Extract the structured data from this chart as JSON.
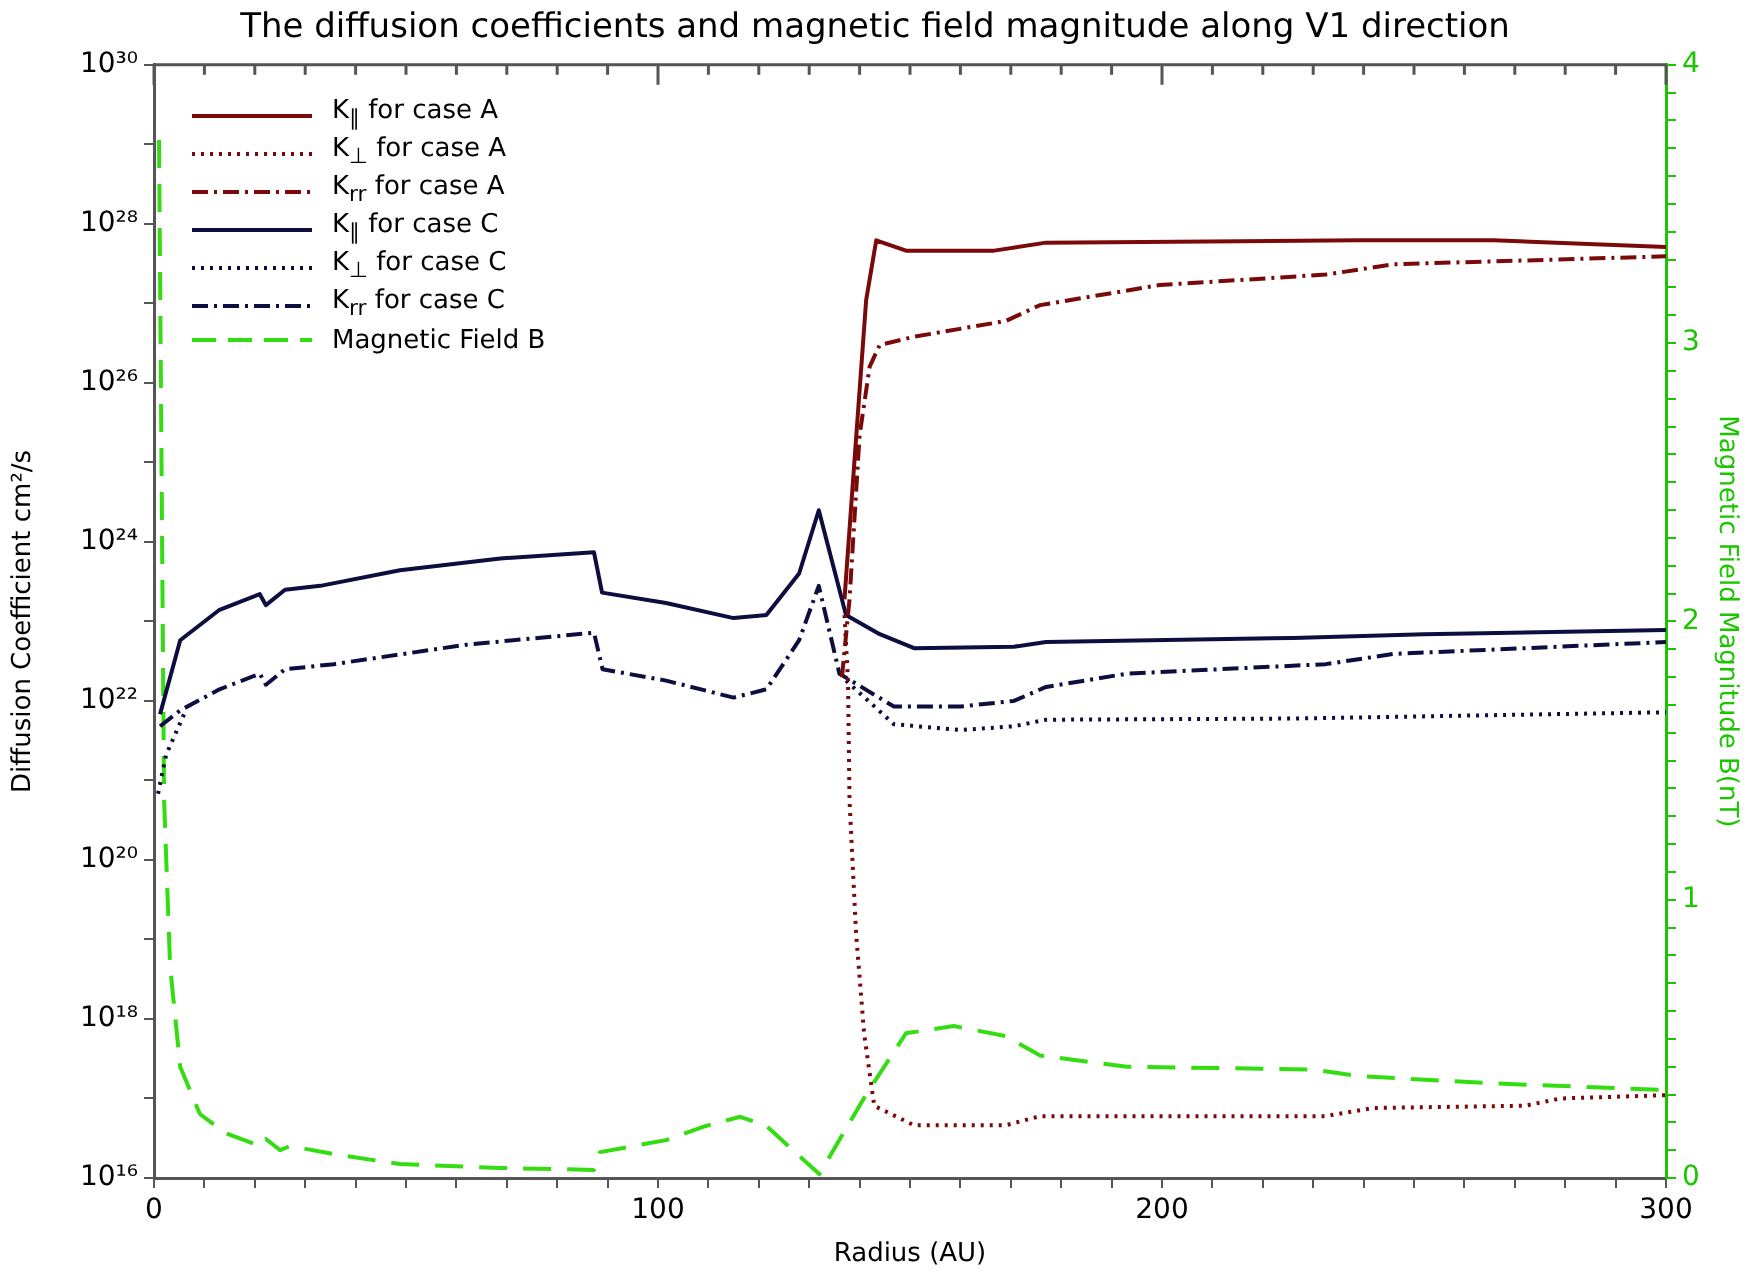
{
  "chart_data": {
    "type": "line",
    "title": "The diffusion coefficients and magnetic field magnitude along V1 direction",
    "xlabel": "Radius (AU)",
    "ylabel": "Diffusion Coefficient cm²/s",
    "y2label": "Magnetic Field Magnitude B(nT)",
    "log": "y",
    "legend": "top left",
    "marker": "none",
    "grid": false,
    "xlim": [
      0,
      300
    ],
    "xticks": [
      0,
      {
        "value": 10,
        "label": null
      },
      {
        "value": 20,
        "label": null
      },
      {
        "value": 30,
        "label": null
      },
      {
        "value": 40,
        "label": null
      },
      {
        "value": 50,
        "label": null
      },
      {
        "value": 60,
        "label": null
      },
      {
        "value": 70,
        "label": null
      },
      {
        "value": 80,
        "label": null
      },
      {
        "value": 90,
        "label": null
      },
      100,
      {
        "value": 110,
        "label": null
      },
      {
        "value": 120,
        "label": null
      },
      {
        "value": 130,
        "label": null
      },
      {
        "value": 140,
        "label": null
      },
      {
        "value": 150,
        "label": null
      },
      {
        "value": 160,
        "label": null
      },
      {
        "value": 170,
        "label": null
      },
      {
        "value": 180,
        "label": null
      },
      {
        "value": 190,
        "label": null
      },
      200,
      {
        "value": 210,
        "label": null
      },
      {
        "value": 220,
        "label": null
      },
      {
        "value": 230,
        "label": null
      },
      {
        "value": 240,
        "label": null
      },
      {
        "value": 250,
        "label": null
      },
      {
        "value": 260,
        "label": null
      },
      {
        "value": 270,
        "label": null
      },
      {
        "value": 280,
        "label": null
      },
      {
        "value": 290,
        "label": null
      },
      300
    ],
    "ylim": [
      1e+16,
      1e+30
    ],
    "yticks": [
      {
        "value": 1e+16,
        "label": "10¹⁶"
      },
      {
        "value": 1e+17,
        "label": null
      },
      {
        "value": 1e+18,
        "label": "10¹⁸"
      },
      {
        "value": 1e+19,
        "label": null
      },
      {
        "value": 1e+20,
        "label": "10²⁰"
      },
      {
        "value": 1e+21,
        "label": null
      },
      {
        "value": 1e+22,
        "label": "10²²"
      },
      {
        "value": 1e+23,
        "label": null
      },
      {
        "value": 1e+24,
        "label": "10²⁴"
      },
      {
        "value": 1e+25,
        "label": null
      },
      {
        "value": 1e+26,
        "label": "10²⁶"
      },
      {
        "value": 1e+27,
        "label": null
      },
      {
        "value": 1e+28,
        "label": "10²⁸"
      },
      {
        "value": 1e+29,
        "label": null
      },
      {
        "value": 1e+30,
        "label": "10³⁰"
      }
    ],
    "y2lim": [
      0,
      4
    ],
    "y2ticks": [
      0,
      {
        "value": 0.1,
        "label": null
      },
      {
        "value": 0.2,
        "label": null
      },
      {
        "value": 0.3,
        "label": null
      },
      {
        "value": 0.4,
        "label": null
      },
      {
        "value": 0.5,
        "label": null
      },
      {
        "value": 0.6,
        "label": null
      },
      {
        "value": 0.7,
        "label": null
      },
      {
        "value": 0.8,
        "label": null
      },
      {
        "value": 0.9,
        "label": null
      },
      1,
      {
        "value": 1.1,
        "label": null
      },
      {
        "value": 1.2,
        "label": null
      },
      {
        "value": 1.3,
        "label": null
      },
      {
        "value": 1.4,
        "label": null
      },
      {
        "value": 1.5,
        "label": null
      },
      {
        "value": 1.6,
        "label": null
      },
      {
        "value": 1.7,
        "label": null
      },
      {
        "value": 1.8,
        "label": null
      },
      {
        "value": 1.9,
        "label": null
      },
      2,
      {
        "value": 2.1,
        "label": null
      },
      {
        "value": 2.2,
        "label": null
      },
      {
        "value": 2.3,
        "label": null
      },
      {
        "value": 2.4,
        "label": null
      },
      {
        "value": 2.5,
        "label": null
      },
      {
        "value": 2.6,
        "label": null
      },
      {
        "value": 2.7,
        "label": null
      },
      {
        "value": 2.8,
        "label": null
      },
      {
        "value": 2.9,
        "label": null
      },
      3,
      {
        "value": 3.1,
        "label": null
      },
      {
        "value": 3.2,
        "label": null
      },
      {
        "value": 3.3,
        "label": null
      },
      {
        "value": 3.4,
        "label": null
      },
      {
        "value": 3.5,
        "label": null
      },
      {
        "value": 3.6,
        "label": null
      },
      {
        "value": 3.7,
        "label": null
      },
      {
        "value": 3.8,
        "label": null
      },
      {
        "value": 3.9,
        "label": null
      },
      4
    ],
    "series": [
      {
        "name": "K$_{∥}$ for case A",
        "color": "#7a0a0a",
        "line_style": "solid",
        "x": [
          137,
          138.9,
          141.3,
          143.3,
          149.2,
          166.7,
          177,
          239,
          265.8,
          300
        ],
        "values": [
          1.9e+23,
          8.9e+24,
          1.1e+27,
          6.2e+27,
          4.6e+27,
          4.6e+27,
          5.8e+27,
          6.2e+27,
          6.2e+27,
          5.1e+27
        ]
      },
      {
        "name": "K$_{⊥}$ for case A",
        "color": "#7a0a0a",
        "line_style": "dotted",
        "x": [
          137,
          137.7,
          138,
          139.3,
          140.9,
          142.9,
          150.8,
          169,
          175.8,
          232.5,
          242,
          272,
          279,
          300
        ],
        "values": [
          1.2e+23,
          1.8e+22,
          5.6e+20,
          1.2e+19,
          6.5e+17,
          8.1e+16,
          4.6e+16,
          4.6e+16,
          6e+16,
          6e+16,
          7.6e+16,
          8.1e+16,
          1e+17,
          1.1e+17
        ]
      },
      {
        "name": "K$_{rr}$ for case A",
        "color": "#7a0a0a",
        "line_style": "dashdot",
        "x": [
          136.5,
          138,
          140,
          142,
          144,
          150.8,
          169,
          175.8,
          199.6,
          232.5,
          246,
          300
        ],
        "values": [
          2e+22,
          1.9e+23,
          2.2e+25,
          1.6e+26,
          3e+26,
          3.8e+26,
          6e+26,
          9.5e+26,
          1.7e+27,
          2.3e+27,
          3.1e+27,
          3.9e+27
        ]
      },
      {
        "name": "K$_{∥}$ for case C",
        "color": "#0d0d40",
        "line_style": "solid",
        "x": [
          1.2,
          5.2,
          13,
          21,
          22.2,
          26,
          33,
          48.8,
          68.7,
          87.3,
          88.9,
          101.6,
          115,
          121.5,
          128,
          131.9,
          137.3,
          144,
          150.8,
          170.6,
          177,
          226,
          252,
          300
        ],
        "values": [
          6.8e+21,
          5.8e+22,
          1.4e+23,
          2.2e+23,
          1.6e+23,
          2.5e+23,
          2.8e+23,
          4.4e+23,
          6.2e+23,
          7.4e+23,
          2.3e+23,
          1.7e+23,
          1.1e+23,
          1.2e+23,
          4e+23,
          2.5e+24,
          1.2e+23,
          6.9e+22,
          4.6e+22,
          4.8e+22,
          5.5e+22,
          6.2e+22,
          6.9e+22,
          7.8e+22
        ]
      },
      {
        "name": "K$_{⊥}$ for case C",
        "color": "#0d0d40",
        "line_style": "dotted",
        "x": [
          0.8,
          2.4,
          6.3,
          10,
          137.3,
          146.8,
          160,
          170.6,
          177,
          226,
          300
        ],
        "values": [
          6.8e+20,
          2.1e+21,
          7.6e+21,
          null,
          1.8e+22,
          5.1e+21,
          4.3e+21,
          4.8e+21,
          5.8e+21,
          6e+21,
          7.2e+21
        ]
      },
      {
        "name": "K$_{rr}$ for case C",
        "color": "#0d0d40",
        "line_style": "dashdot",
        "x": [
          1.2,
          5.2,
          13,
          21,
          22.2,
          26,
          35.7,
          62,
          87.3,
          89,
          101.6,
          115,
          121.5,
          128,
          131.9,
          136,
          146.8,
          160,
          170.6,
          177,
          193,
          232.5,
          246,
          300
        ],
        "values": [
          4.8e+21,
          7.6e+21,
          1.4e+22,
          2.2e+22,
          1.6e+22,
          2.5e+22,
          2.9e+22,
          5.1e+22,
          7.2e+22,
          2.5e+22,
          1.8e+22,
          1.1e+22,
          1.4e+22,
          5.8e+22,
          2.8e+23,
          2.2e+22,
          8.5e+21,
          8.5e+21,
          1e+22,
          1.5e+22,
          2.2e+22,
          2.9e+22,
          3.9e+22,
          5.5e+22
        ]
      },
      {
        "name": "Magnetic Field B",
        "color": "#33dd11",
        "line_style": "dashed",
        "axis": "y2",
        "x": [
          1,
          2,
          3.2,
          5.2,
          9.1,
          14.3,
          21,
          22.2,
          25,
          27,
          35.7,
          48.8,
          68.7,
          87.3,
          88.5,
          101.6,
          109.5,
          116.3,
          121.5,
          132,
          141.3,
          149.2,
          158.7,
          169,
          175.8,
          193,
          230,
          239,
          265.8,
          300
        ],
        "values": [
          3.73,
          1.36,
          0.76,
          0.4,
          0.23,
          0.16,
          0.115,
          0.14,
          0.1,
          0.115,
          0.086,
          0.05,
          0.036,
          0.029,
          0.093,
          0.136,
          0.187,
          0.22,
          0.187,
          0.014,
          0.3,
          0.52,
          0.546,
          0.51,
          0.44,
          0.4,
          0.39,
          0.366,
          0.34,
          0.316
        ]
      }
    ]
  }
}
